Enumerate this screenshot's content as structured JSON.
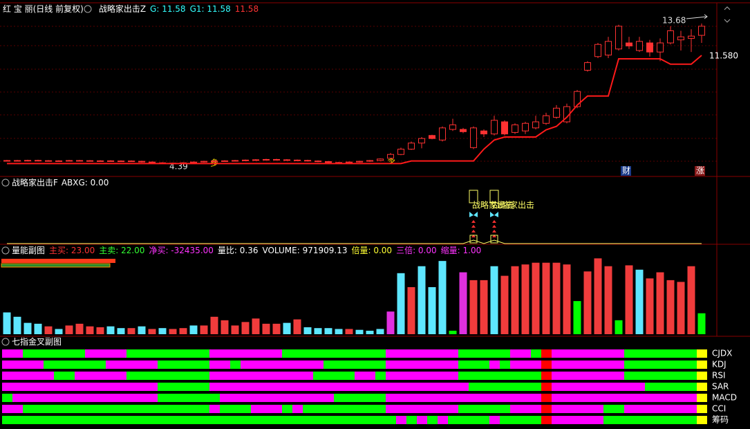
{
  "chart_data": [
    {
      "type": "candlestick",
      "title": "红 宝 丽(日线 前复权)",
      "indicator": "战略家出击Z",
      "legend": [
        {
          "label": "G: 11.58",
          "color": "#33ffff"
        },
        {
          "label": "G1: 11.58",
          "color": "#33ffff"
        },
        {
          "label": "11.58",
          "color": "#ff3333"
        }
      ],
      "annotations": [
        "13.68",
        "11.580",
        "4.39",
        "多",
        "多",
        "财",
        "涨"
      ],
      "ylim": [
        3.6,
        15
      ],
      "color": "#ff3232",
      "open": [
        4.62,
        4.65,
        4.63,
        4.66,
        4.64,
        4.62,
        4.63,
        4.65,
        4.64,
        4.62,
        4.63,
        4.61,
        4.62,
        4.6,
        4.55,
        4.5,
        4.48,
        4.45,
        4.5,
        4.55,
        4.6,
        4.62,
        4.63,
        4.65,
        4.68,
        4.7,
        4.72,
        4.7,
        4.68,
        4.66,
        4.62,
        4.58,
        4.52,
        4.5,
        4.55,
        4.6,
        4.65,
        4.8,
        5.05,
        5.4,
        5.8,
        6.3,
        6.0,
        6.7,
        6.7,
        5.5,
        6.6,
        6.4,
        7.2,
        6.5,
        6.6,
        6.8,
        7.1,
        7.5,
        7.2,
        8.2,
        10.6,
        11.5,
        11.6,
        12.0,
        12.4,
        11.9,
        12.4,
        11.8,
        12.4,
        12.6,
        12.7,
        12.9
      ],
      "high": [
        4.69,
        4.69,
        4.7,
        4.7,
        4.68,
        4.67,
        4.69,
        4.69,
        4.68,
        4.67,
        4.67,
        4.66,
        4.66,
        4.64,
        4.59,
        4.54,
        4.52,
        4.54,
        4.59,
        4.64,
        4.66,
        4.67,
        4.69,
        4.72,
        4.74,
        4.76,
        4.76,
        4.74,
        4.72,
        4.7,
        4.66,
        4.62,
        4.56,
        4.59,
        4.64,
        4.69,
        4.79,
        5.15,
        5.5,
        5.9,
        6.2,
        6.35,
        6.9,
        7.4,
        6.8,
        6.9,
        6.7,
        7.6,
        7.3,
        7.1,
        7.2,
        7.6,
        7.8,
        8.3,
        8.4,
        9.3,
        11.2,
        12.4,
        12.8,
        13.6,
        12.8,
        12.8,
        12.6,
        12.7,
        13.5,
        13.2,
        13.3,
        13.68
      ],
      "low": [
        4.58,
        4.59,
        4.59,
        4.6,
        4.58,
        4.58,
        4.59,
        4.6,
        4.58,
        4.58,
        4.57,
        4.57,
        4.56,
        4.51,
        4.46,
        4.44,
        4.39,
        4.41,
        4.46,
        4.51,
        4.56,
        4.58,
        4.59,
        4.61,
        4.64,
        4.66,
        4.66,
        4.64,
        4.62,
        4.58,
        4.54,
        4.48,
        4.46,
        4.46,
        4.51,
        4.56,
        4.61,
        4.75,
        5.0,
        5.35,
        5.45,
        6.05,
        5.9,
        6.6,
        6.45,
        5.4,
        6.2,
        6.3,
        6.3,
        6.4,
        6.4,
        6.7,
        7.0,
        7.4,
        7.1,
        8.1,
        10.5,
        11.4,
        11.4,
        11.9,
        12.0,
        11.8,
        11.5,
        11.2,
        12.3,
        11.9,
        11.8,
        12.4
      ],
      "close": [
        4.65,
        4.63,
        4.66,
        4.64,
        4.62,
        4.63,
        4.65,
        4.64,
        4.62,
        4.63,
        4.61,
        4.62,
        4.6,
        4.55,
        4.5,
        4.48,
        4.45,
        4.5,
        4.55,
        4.6,
        4.62,
        4.63,
        4.65,
        4.68,
        4.7,
        4.72,
        4.7,
        4.68,
        4.66,
        4.62,
        4.58,
        4.52,
        4.5,
        4.55,
        4.6,
        4.65,
        4.75,
        5.05,
        5.4,
        5.8,
        6.1,
        6.1,
        6.8,
        7.0,
        6.55,
        6.8,
        6.4,
        7.3,
        6.4,
        7.0,
        7.1,
        7.2,
        7.6,
        8.1,
        8.2,
        9.2,
        11.1,
        12.3,
        12.5,
        13.5,
        12.2,
        12.5,
        11.8,
        12.4,
        13.2,
        12.8,
        12.85,
        13.5
      ],
      "series": [
        {
          "color": "#ff1a1a",
          "values": [
            4.45,
            4.45,
            4.45,
            4.45,
            4.45,
            4.45,
            4.45,
            4.45,
            4.45,
            4.45,
            4.45,
            4.45,
            4.45,
            4.45,
            4.45,
            4.45,
            4.45,
            4.45,
            4.45,
            4.45,
            4.45,
            4.45,
            4.45,
            4.45,
            4.45,
            4.45,
            4.45,
            4.45,
            4.45,
            4.45,
            4.45,
            4.45,
            4.45,
            4.45,
            4.45,
            4.45,
            4.45,
            4.45,
            4.45,
            4.62,
            4.62,
            4.62,
            4.62,
            4.62,
            4.62,
            4.62,
            5.4,
            6.0,
            6.2,
            6.2,
            6.2,
            6.2,
            6.67,
            6.9,
            7.5,
            8.3,
            8.9,
            8.9,
            8.9,
            11.35,
            11.35,
            11.35,
            11.35,
            11.35,
            11.0,
            11.0,
            11.0,
            11.58
          ]
        }
      ]
    },
    {
      "type": "signal",
      "title": "战略家出击F",
      "legend": [
        {
          "label": "ABXG: 0.00",
          "color": "#ffffff"
        }
      ],
      "annotations": [
        "战略家出击",
        "战略家出击"
      ],
      "values": [
        0,
        0,
        0,
        0,
        0,
        0,
        0,
        0,
        0,
        0,
        0,
        0,
        0,
        0,
        0,
        0,
        0,
        0,
        0,
        0,
        0,
        0,
        0,
        0,
        0,
        0,
        0,
        0,
        0,
        0,
        0,
        0,
        0,
        0,
        0,
        0,
        0,
        0,
        0,
        0,
        0,
        0,
        0,
        0,
        0,
        1,
        0,
        1,
        0,
        0,
        0,
        0,
        0,
        0,
        0,
        0,
        0,
        0,
        0,
        0,
        0,
        0,
        0,
        0,
        0,
        0,
        0,
        0
      ],
      "color": "#ffff66"
    },
    {
      "type": "bar",
      "title": "量能副图",
      "legend": [
        {
          "label": "主买: 23.00",
          "color": "#ff3333"
        },
        {
          "label": "主卖: 22.00",
          "color": "#33ff33"
        },
        {
          "label": "净买: -32435.00",
          "color": "#ff33ff"
        },
        {
          "label": "量比: 0.36",
          "color": "#ffffff"
        },
        {
          "label": "VOLUME: 971909.13",
          "color": "#ffffff"
        },
        {
          "label": "倍量: 0.00",
          "color": "#ffff33"
        },
        {
          "label": "三倍: 0.00",
          "color": "#ff33ff"
        },
        {
          "label": "缩量: 1.00",
          "color": "#ff33ff"
        }
      ],
      "ylim": [
        0,
        100
      ],
      "values": [
        25,
        20,
        13,
        12,
        9,
        6,
        10,
        12,
        9,
        8,
        9,
        7,
        7,
        9,
        6,
        7,
        6,
        7,
        10,
        10,
        20,
        16,
        10,
        14,
        18,
        12,
        12,
        13,
        17,
        8,
        7,
        7,
        6,
        6,
        5,
        4,
        6,
        26,
        70,
        54,
        78,
        54,
        84,
        4,
        71,
        62,
        62,
        78,
        67,
        78,
        80,
        82,
        82,
        82,
        80,
        38,
        72,
        87,
        78,
        16,
        79,
        74,
        64,
        71,
        62,
        60,
        78,
        24
      ],
      "colors": [
        "#5ee6ff",
        "#5ee6ff",
        "#5ee6ff",
        "#5ee6ff",
        "#f03c3c",
        "#5ee6ff",
        "#f03c3c",
        "#f03c3c",
        "#f03c3c",
        "#f03c3c",
        "#5ee6ff",
        "#5ee6ff",
        "#f03c3c",
        "#5ee6ff",
        "#f03c3c",
        "#5ee6ff",
        "#f03c3c",
        "#f03c3c",
        "#5ee6ff",
        "#f03c3c",
        "#f03c3c",
        "#f03c3c",
        "#f03c3c",
        "#f03c3c",
        "#f03c3c",
        "#f03c3c",
        "#f03c3c",
        "#5ee6ff",
        "#f03c3c",
        "#5ee6ff",
        "#5ee6ff",
        "#5ee6ff",
        "#5ee6ff",
        "#f03c3c",
        "#5ee6ff",
        "#5ee6ff",
        "#5ee6ff",
        "#e030e0",
        "#5ee6ff",
        "#f03c3c",
        "#5ee6ff",
        "#5ee6ff",
        "#5ee6ff",
        "#00ff00",
        "#e030e0",
        "#f03c3c",
        "#f03c3c",
        "#5ee6ff",
        "#f03c3c",
        "#f03c3c",
        "#f03c3c",
        "#f03c3c",
        "#f03c3c",
        "#f03c3c",
        "#f03c3c",
        "#00ff00",
        "#f03c3c",
        "#f03c3c",
        "#f03c3c",
        "#00ff00",
        "#f03c3c",
        "#5ee6ff",
        "#f03c3c",
        "#f03c3c",
        "#f03c3c",
        "#f03c3c",
        "#f03c3c",
        "#00ff00"
      ]
    },
    {
      "type": "strip",
      "title": "七指金叉副图",
      "rows": [
        {
          "name": "CJDX",
          "runs": [
            {
              "color": "#ff00ff",
              "days": 2
            },
            {
              "color": "#00ff00",
              "days": 6
            },
            {
              "color": "#ff00ff",
              "days": 4
            },
            {
              "color": "#00ff00",
              "days": 8
            },
            {
              "color": "#ff00ff",
              "days": 7
            },
            {
              "color": "#00ff00",
              "days": 10
            },
            {
              "color": "#ff00ff",
              "days": 7
            },
            {
              "color": "#00ff00",
              "days": 5
            },
            {
              "color": "#ff00ff",
              "days": 2
            },
            {
              "color": "#00ff00",
              "days": 1
            },
            {
              "color": "#ff0000",
              "days": 1
            },
            {
              "color": "#ff00ff",
              "days": 7
            },
            {
              "color": "#00ff00",
              "days": 7
            },
            {
              "color": "#ffff00",
              "days": 1
            }
          ]
        },
        {
          "name": "KDJ",
          "runs": [
            {
              "color": "#ff00ff",
              "days": 4
            },
            {
              "color": "#00ff00",
              "days": 6
            },
            {
              "color": "#ff00ff",
              "days": 5
            },
            {
              "color": "#00ff00",
              "days": 5
            },
            {
              "color": "#ff00ff",
              "days": 2
            },
            {
              "color": "#00ff00",
              "days": 1
            },
            {
              "color": "#ff00ff",
              "days": 8
            },
            {
              "color": "#00ff00",
              "days": 6
            },
            {
              "color": "#ff00ff",
              "days": 7
            },
            {
              "color": "#00ff00",
              "days": 3
            },
            {
              "color": "#ff00ff",
              "days": 1
            },
            {
              "color": "#00ff00",
              "days": 1
            },
            {
              "color": "#ff00ff",
              "days": 3
            },
            {
              "color": "#ff0000",
              "days": 1
            },
            {
              "color": "#ff00ff",
              "days": 7
            },
            {
              "color": "#00ff00",
              "days": 7
            },
            {
              "color": "#ffff00",
              "days": 1
            }
          ]
        },
        {
          "name": "RSI",
          "runs": [
            {
              "color": "#ff00ff",
              "days": 5
            },
            {
              "color": "#00ff00",
              "days": 2
            },
            {
              "color": "#ff00ff",
              "days": 5
            },
            {
              "color": "#00ff00",
              "days": 8
            },
            {
              "color": "#ff00ff",
              "days": 10
            },
            {
              "color": "#00ff00",
              "days": 4
            },
            {
              "color": "#ff00ff",
              "days": 2
            },
            {
              "color": "#00ff00",
              "days": 1
            },
            {
              "color": "#ff00ff",
              "days": 7
            },
            {
              "color": "#00ff00",
              "days": 8
            },
            {
              "color": "#ff0000",
              "days": 1
            },
            {
              "color": "#ff00ff",
              "days": 7
            },
            {
              "color": "#00ff00",
              "days": 7
            },
            {
              "color": "#ffff00",
              "days": 1
            }
          ]
        },
        {
          "name": "SAR",
          "runs": [
            {
              "color": "#ff00ff",
              "days": 15
            },
            {
              "color": "#00ff00",
              "days": 5
            },
            {
              "color": "#ff00ff",
              "days": 25
            },
            {
              "color": "#00ff00",
              "days": 7
            },
            {
              "color": "#ff0000",
              "days": 1
            },
            {
              "color": "#ff00ff",
              "days": 9
            },
            {
              "color": "#00ff00",
              "days": 5
            },
            {
              "color": "#ffff00",
              "days": 1
            }
          ]
        },
        {
          "name": "MACD",
          "runs": [
            {
              "color": "#00ff00",
              "days": 1
            },
            {
              "color": "#ff00ff",
              "days": 14
            },
            {
              "color": "#00ff00",
              "days": 6
            },
            {
              "color": "#ff00ff",
              "days": 11
            },
            {
              "color": "#00ff00",
              "days": 5
            },
            {
              "color": "#ff00ff",
              "days": 15
            },
            {
              "color": "#ff0000",
              "days": 1
            },
            {
              "color": "#ff00ff",
              "days": 14
            },
            {
              "color": "#ffff00",
              "days": 1
            }
          ]
        },
        {
          "name": "CCI",
          "runs": [
            {
              "color": "#ff00ff",
              "days": 2
            },
            {
              "color": "#00ff00",
              "days": 18
            },
            {
              "color": "#ff00ff",
              "days": 1
            },
            {
              "color": "#00ff00",
              "days": 3
            },
            {
              "color": "#ff00ff",
              "days": 3
            },
            {
              "color": "#00ff00",
              "days": 1
            },
            {
              "color": "#ff00ff",
              "days": 1
            },
            {
              "color": "#00ff00",
              "days": 8
            },
            {
              "color": "#ff00ff",
              "days": 7
            },
            {
              "color": "#00ff00",
              "days": 5
            },
            {
              "color": "#ff00ff",
              "days": 3
            },
            {
              "color": "#ff0000",
              "days": 1
            },
            {
              "color": "#ff00ff",
              "days": 5
            },
            {
              "color": "#00ff00",
              "days": 2
            },
            {
              "color": "#ff00ff",
              "days": 7
            },
            {
              "color": "#ffff00",
              "days": 1
            }
          ]
        },
        {
          "name": "筹码",
          "runs": [
            {
              "color": "#00ff00",
              "days": 38
            },
            {
              "color": "#ff00ff",
              "days": 1
            },
            {
              "color": "#00ff00",
              "days": 1
            },
            {
              "color": "#ff00ff",
              "days": 1
            },
            {
              "color": "#00ff00",
              "days": 1
            },
            {
              "color": "#ff00ff",
              "days": 1
            },
            {
              "color": "#00ff00",
              "days": 4
            },
            {
              "color": "#ff00ff",
              "days": 1
            },
            {
              "color": "#00ff00",
              "days": 4
            },
            {
              "color": "#ff0000",
              "days": 1
            },
            {
              "color": "#ff00ff",
              "days": 5
            },
            {
              "color": "#00ff00",
              "days": 2
            },
            {
              "color": "#00ff00",
              "days": 7
            },
            {
              "color": "#ffff00",
              "days": 1
            }
          ]
        }
      ]
    }
  ]
}
